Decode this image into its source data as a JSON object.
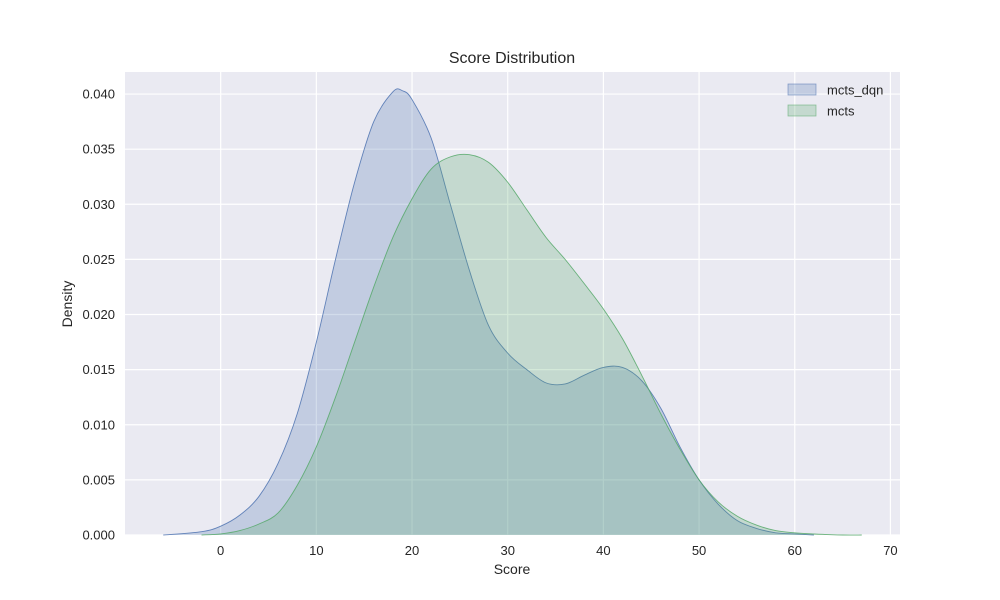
{
  "chart_data": {
    "type": "area",
    "title": "Score Distribution",
    "xlabel": "Score",
    "ylabel": "Density",
    "xlim": [
      -10,
      71
    ],
    "ylim": [
      0,
      0.042
    ],
    "xticks": [
      0,
      10,
      20,
      30,
      40,
      50,
      60,
      70
    ],
    "yticks": [
      0.0,
      0.005,
      0.01,
      0.015,
      0.02,
      0.025,
      0.03,
      0.035,
      0.04
    ],
    "ytick_labels": [
      "0.000",
      "0.005",
      "0.010",
      "0.015",
      "0.020",
      "0.025",
      "0.030",
      "0.035",
      "0.040"
    ],
    "grid": true,
    "legend_position": "top-right",
    "series": [
      {
        "name": "mcts_dqn",
        "color": "#4C72B0",
        "points": [
          [
            -6,
            0.0
          ],
          [
            -2,
            0.0003
          ],
          [
            0,
            0.0008
          ],
          [
            2,
            0.0018
          ],
          [
            4,
            0.0035
          ],
          [
            6,
            0.0065
          ],
          [
            8,
            0.011
          ],
          [
            10,
            0.0175
          ],
          [
            12,
            0.025
          ],
          [
            14,
            0.032
          ],
          [
            16,
            0.0375
          ],
          [
            18,
            0.0402
          ],
          [
            19,
            0.0403
          ],
          [
            20,
            0.0395
          ],
          [
            22,
            0.036
          ],
          [
            24,
            0.03
          ],
          [
            26,
            0.024
          ],
          [
            28,
            0.019
          ],
          [
            30,
            0.0165
          ],
          [
            32,
            0.015
          ],
          [
            34,
            0.0138
          ],
          [
            36,
            0.0137
          ],
          [
            38,
            0.0145
          ],
          [
            40,
            0.0152
          ],
          [
            42,
            0.0152
          ],
          [
            44,
            0.014
          ],
          [
            46,
            0.0115
          ],
          [
            48,
            0.008
          ],
          [
            50,
            0.005
          ],
          [
            52,
            0.0028
          ],
          [
            54,
            0.0013
          ],
          [
            56,
            0.0006
          ],
          [
            58,
            0.0002
          ],
          [
            60,
            0.0001
          ],
          [
            62,
            0.0
          ]
        ]
      },
      {
        "name": "mcts",
        "color": "#55A868",
        "points": [
          [
            -2,
            0.0
          ],
          [
            0,
            0.0001
          ],
          [
            2,
            0.0004
          ],
          [
            4,
            0.001
          ],
          [
            6,
            0.002
          ],
          [
            8,
            0.0045
          ],
          [
            10,
            0.008
          ],
          [
            12,
            0.0125
          ],
          [
            14,
            0.0175
          ],
          [
            16,
            0.0225
          ],
          [
            18,
            0.027
          ],
          [
            20,
            0.0305
          ],
          [
            22,
            0.0332
          ],
          [
            24,
            0.0343
          ],
          [
            26,
            0.0345
          ],
          [
            28,
            0.0338
          ],
          [
            30,
            0.032
          ],
          [
            32,
            0.0295
          ],
          [
            34,
            0.027
          ],
          [
            36,
            0.025
          ],
          [
            38,
            0.0228
          ],
          [
            40,
            0.0205
          ],
          [
            42,
            0.0178
          ],
          [
            44,
            0.0145
          ],
          [
            46,
            0.011
          ],
          [
            48,
            0.0078
          ],
          [
            50,
            0.005
          ],
          [
            52,
            0.003
          ],
          [
            54,
            0.0017
          ],
          [
            56,
            0.0009
          ],
          [
            58,
            0.0004
          ],
          [
            60,
            0.0002
          ],
          [
            62,
            0.0001
          ],
          [
            65,
            0.0
          ],
          [
            67,
            0.0
          ]
        ]
      }
    ]
  }
}
